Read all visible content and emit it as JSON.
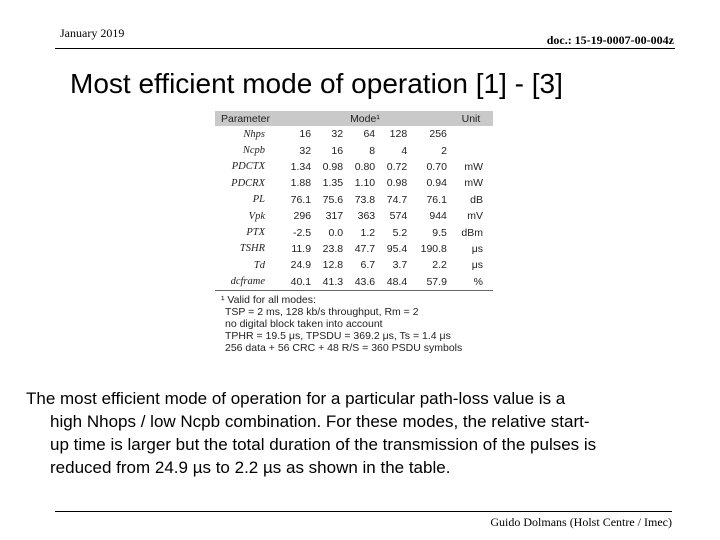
{
  "header": {
    "date": "January 2019",
    "doc": "doc.: 15-19-0007-00-004z"
  },
  "slide": {
    "title": "Most efficient  mode of operation [1] - [3]"
  },
  "table": {
    "headers": {
      "parameter": "Parameter",
      "mode": "Mode¹",
      "unit": "Unit"
    },
    "rows": [
      {
        "param": "Nhps",
        "values": [
          "16",
          "32",
          "64",
          "128",
          "256"
        ],
        "unit": ""
      },
      {
        "param": "Ncpb",
        "values": [
          "32",
          "16",
          "8",
          "4",
          "2"
        ],
        "unit": ""
      },
      {
        "param": "PDCTX",
        "values": [
          "1.34",
          "0.98",
          "0.80",
          "0.72",
          "0.70"
        ],
        "unit": "mW"
      },
      {
        "param": "PDCRX",
        "values": [
          "1.88",
          "1.35",
          "1.10",
          "0.98",
          "0.94"
        ],
        "unit": "mW"
      },
      {
        "param": "PL",
        "values": [
          "76.1",
          "75.6",
          "73.8",
          "74.7",
          "76.1"
        ],
        "unit": "dB"
      },
      {
        "param": "Vpk",
        "values": [
          "296",
          "317",
          "363",
          "574",
          "944"
        ],
        "unit": "mV"
      },
      {
        "param": "PTX",
        "values": [
          "-2.5",
          "0.0",
          "1.2",
          "5.2",
          "9.5"
        ],
        "unit": "dBm"
      },
      {
        "param": "TSHR",
        "values": [
          "11.9",
          "23.8",
          "47.7",
          "95.4",
          "190.8"
        ],
        "unit": "μs"
      },
      {
        "param": "Td",
        "values": [
          "24.9",
          "12.8",
          "6.7",
          "3.7",
          "2.2"
        ],
        "unit": "μs"
      },
      {
        "param": "dcframe",
        "values": [
          "40.1",
          "41.3",
          "43.6",
          "48.4",
          "57.9"
        ],
        "unit": "%"
      }
    ],
    "notes": [
      "¹ Valid for all modes:",
      "TSP = 2 ms, 128 kb/s throughput, Rm = 2",
      "no digital block taken into account",
      "TPHR = 19.5 μs, TPSDU = 369.2 μs, Ts = 1.4 μs",
      "256 data + 56 CRC + 48 R/S = 360 PSDU symbols"
    ]
  },
  "body": {
    "lines": [
      "The most efficient mode of operation for a particular path-loss value is a",
      "high Nhops / low Ncpb combination. For these modes, the relative start-",
      "up time is larger but the total duration of the transmission of the pulses is",
      "reduced from 24.9 µs to 2.2 µs as shown in the table."
    ]
  },
  "footer": {
    "author": "Guido Dolmans (Holst Centre / Imec)"
  }
}
